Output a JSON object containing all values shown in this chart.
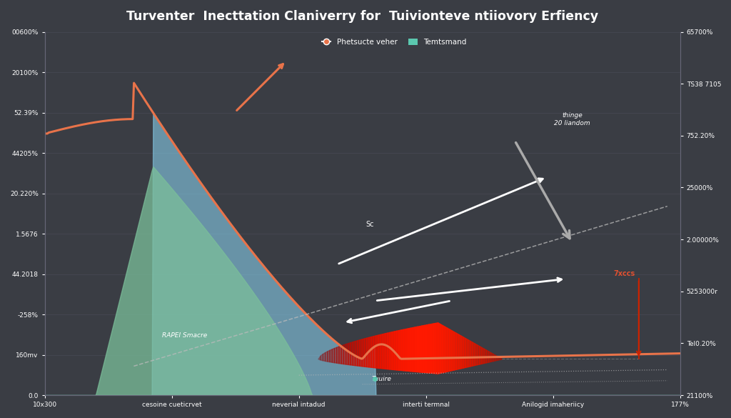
{
  "title": "Turventer  Inecttation Claniverry for  Tuivionteve ntiiovory Erfiency",
  "background_color": "#3a3d44",
  "x_labels": [
    "10x300",
    "cesoine cueticrvet",
    "neverial intadud",
    "interti termnal",
    "Anilogid imaheriicy",
    "177%"
  ],
  "y_left_labels": [
    "00600%",
    "20100%",
    "52.39%",
    "44205%",
    "20.220%",
    "1.5676",
    "44.2018",
    "-258%",
    "160mv",
    "0.0"
  ],
  "y_right_labels": [
    "65700%",
    "TS38 7105",
    "752.20%",
    "25000%",
    "2.00000%",
    "5253000r",
    "Tel0.20%",
    "21100%"
  ],
  "legend_items": [
    {
      "label": "Phetsucte veher",
      "color": "#e8734a",
      "marker": "o"
    },
    {
      "label": "Temtsmand",
      "color": "#5bc8af",
      "marker": "s"
    }
  ],
  "line_color_orange": "#e8734a",
  "fill_color_green": "#7bbf9a",
  "fill_color_blue": "#87ceeb",
  "dashed_line_color": "#aaaaaa",
  "text_color": "#ffffff",
  "grid_color": "#555566",
  "annotation_rapid": "RAPEI Smacre",
  "annotation_future": "Tuuire",
  "annotation_change": "thinge\n20 liandom",
  "annotation_7x": "7xccs",
  "annotation_sc": "Sc"
}
